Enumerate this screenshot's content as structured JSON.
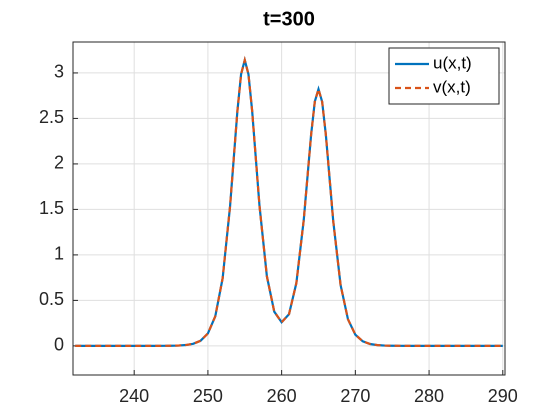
{
  "chart_data": {
    "type": "line",
    "title": "t=300",
    "x": [
      232,
      233,
      234,
      235,
      236,
      237,
      238,
      239,
      240,
      241,
      242,
      243,
      244,
      245,
      246,
      247,
      248,
      249,
      250,
      251,
      252,
      253,
      254,
      254.5,
      255,
      255.5,
      256,
      257,
      258,
      259,
      260,
      261,
      262,
      263,
      264,
      264.5,
      265,
      265.5,
      266,
      267,
      268,
      269,
      270,
      271,
      272,
      273,
      274,
      275,
      276,
      277,
      278,
      279,
      280,
      281,
      282,
      283,
      284,
      285,
      286,
      287,
      288,
      289,
      290
    ],
    "series": [
      {
        "name": "u(x,t)",
        "color": "#0072bd",
        "linestyle": "solid",
        "values": [
          0,
          0,
          0,
          0,
          0,
          0,
          0,
          0,
          0,
          0,
          0,
          0,
          0.0006,
          0.0016,
          0.0038,
          0.0094,
          0.023,
          0.056,
          0.137,
          0.325,
          0.744,
          1.529,
          2.582,
          2.986,
          3.141,
          2.986,
          2.584,
          1.537,
          0.765,
          0.376,
          0.26,
          0.348,
          0.691,
          1.383,
          2.322,
          2.685,
          2.822,
          2.682,
          2.319,
          1.373,
          0.668,
          0.292,
          0.123,
          0.0505,
          0.0206,
          0.0084,
          0.0034,
          0.0014,
          0.0006,
          0.0002,
          0,
          0,
          0,
          0,
          0,
          0,
          0,
          0,
          0,
          0,
          0,
          0,
          0
        ]
      },
      {
        "name": "v(x,t)",
        "color": "#d95319",
        "linestyle": "dashed",
        "values": [
          0,
          0,
          0,
          0,
          0,
          0,
          0,
          0,
          0,
          0,
          0,
          0,
          0.0006,
          0.0016,
          0.0038,
          0.0094,
          0.023,
          0.056,
          0.137,
          0.325,
          0.744,
          1.529,
          2.582,
          2.986,
          3.141,
          2.986,
          2.584,
          1.537,
          0.765,
          0.376,
          0.26,
          0.348,
          0.691,
          1.383,
          2.322,
          2.685,
          2.822,
          2.682,
          2.319,
          1.373,
          0.668,
          0.292,
          0.123,
          0.0505,
          0.0206,
          0.0084,
          0.0034,
          0.0014,
          0.0006,
          0.0002,
          0,
          0,
          0,
          0,
          0,
          0,
          0,
          0,
          0,
          0,
          0,
          0,
          0
        ]
      }
    ],
    "xlim": [
      231.7,
      290.3
    ],
    "ylim": [
      -0.32,
      3.34
    ],
    "xticks": [
      240,
      250,
      260,
      270,
      280,
      290
    ],
    "yticks": [
      0,
      0.5,
      1,
      1.5,
      2,
      2.5,
      3
    ],
    "grid": true,
    "legend": "top-right"
  }
}
